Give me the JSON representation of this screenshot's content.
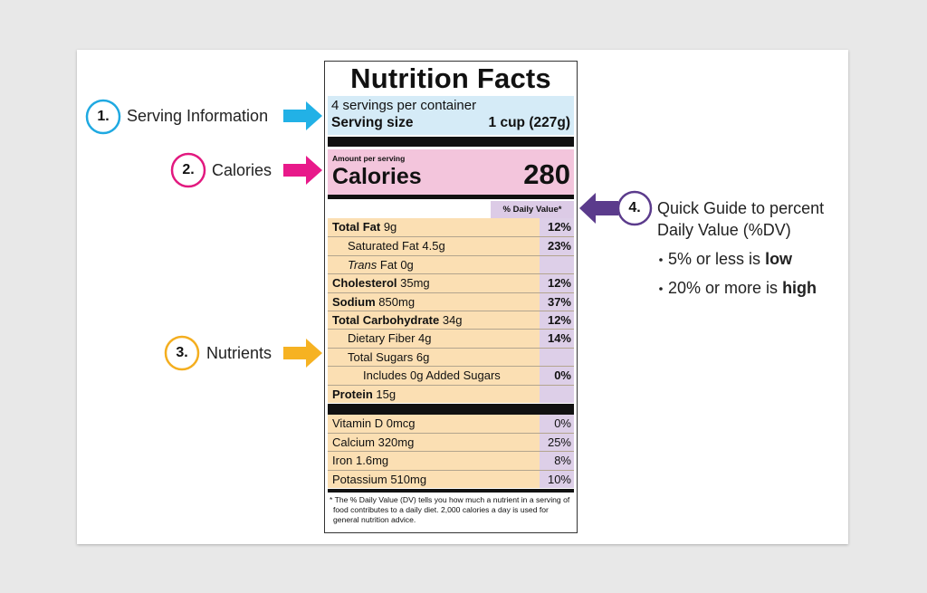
{
  "label": {
    "title": "Nutrition Facts",
    "servings": "4 servings per container",
    "serving_size_label": "Serving size",
    "serving_size": "1 cup (227g)",
    "amount_per_serving": "Amount per serving",
    "calories_label": "Calories",
    "calories": "280",
    "dv_header": "% Daily Value*",
    "nutrients": [
      {
        "name": "Total Fat",
        "amount": "9g",
        "dv": "12%",
        "sub": [
          {
            "name": "Saturated Fat",
            "amount": "4.5g",
            "dv": "23%"
          },
          {
            "name_italic": "Trans",
            "name": "Fat",
            "amount": "0g"
          }
        ]
      },
      {
        "name": "Cholesterol",
        "amount": "35mg",
        "dv": "12%"
      },
      {
        "name": "Sodium",
        "amount": "850mg",
        "dv": "37%"
      },
      {
        "name": "Total Carbohydrate",
        "amount": "34g",
        "dv": "12%",
        "sub": [
          {
            "name": "Dietary Fiber",
            "amount": "4g",
            "dv": "14%"
          },
          {
            "name": "Total Sugars",
            "amount": "6g",
            "sub": [
              {
                "name": "Includes 0g Added Sugars",
                "dv": "0%"
              }
            ]
          }
        ]
      },
      {
        "name": "Protein",
        "amount": "15g"
      }
    ],
    "vitamins": [
      {
        "name": "Vitamin D",
        "amount": "0mcg",
        "dv": "0%"
      },
      {
        "name": "Calcium",
        "amount": "320mg",
        "dv": "25%"
      },
      {
        "name": "Iron",
        "amount": "1.6mg",
        "dv": "8%"
      },
      {
        "name": "Potassium",
        "amount": "510mg",
        "dv": "10%"
      }
    ],
    "footnote": "* The % Daily Value (DV) tells you how much a nutrient in a serving of food contributes to a daily diet. 2,000 calories a day is used for general nutrition advice."
  },
  "annotations": [
    {
      "number": "1.",
      "text": "Serving Information"
    },
    {
      "number": "2.",
      "text": "Calories"
    },
    {
      "number": "3.",
      "text": "Nutrients"
    }
  ],
  "guide": {
    "number": "4.",
    "lines": [
      "Quick Guide to percent",
      "Daily Value (%DV)"
    ],
    "bullets": [
      {
        "text": "5% or less is",
        "emphasis": "low"
      },
      {
        "text": "20% or more is",
        "emphasis": "high"
      }
    ]
  }
}
